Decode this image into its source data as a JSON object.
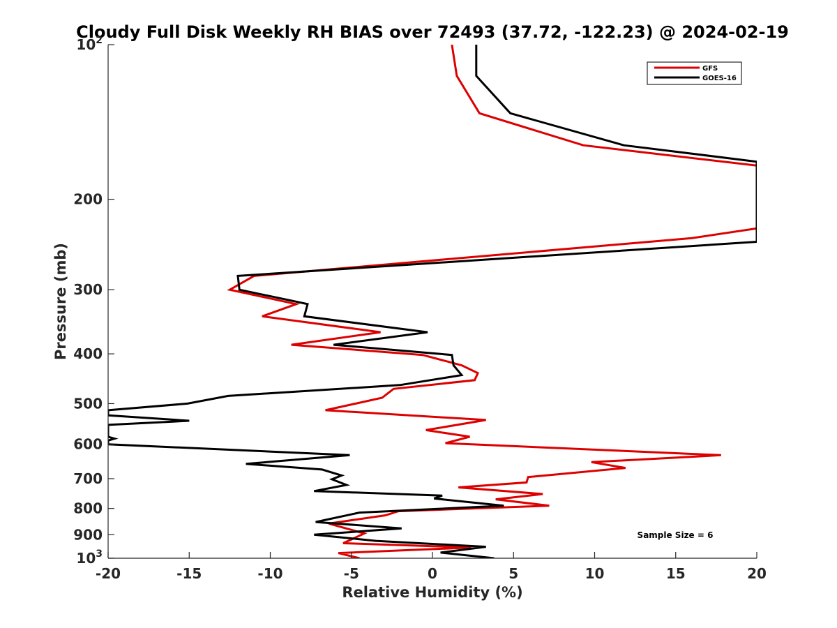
{
  "chart_data": {
    "type": "line",
    "title": "Cloudy Full Disk Weekly RH BIAS over 72493 (37.72, -122.23) @ 2024-02-19",
    "xlabel": "Relative Humidity (%)",
    "ylabel": "Pressure (mb)",
    "xlim": [
      -20,
      20
    ],
    "ylim": [
      100,
      1000
    ],
    "y_scale": "log",
    "y_reversed": true,
    "x_ticks": [
      "-20",
      "-15",
      "-10",
      "-5",
      "0",
      "5",
      "10",
      "15",
      "20"
    ],
    "y_ticks": [
      {
        "value": 100,
        "base": "10",
        "exp": "2"
      },
      {
        "value": 200,
        "label": "200"
      },
      {
        "value": 300,
        "label": "300"
      },
      {
        "value": 400,
        "label": "400"
      },
      {
        "value": 500,
        "label": "500"
      },
      {
        "value": 600,
        "label": "600"
      },
      {
        "value": 700,
        "label": "700"
      },
      {
        "value": 800,
        "label": "800"
      },
      {
        "value": 900,
        "label": "900"
      },
      {
        "value": 1000,
        "base": "10",
        "exp": "3"
      }
    ],
    "legend_position": "top-right",
    "annotation": "Sample Size = 6",
    "series": [
      {
        "name": "GFS",
        "color": "#dd0000",
        "points": [
          [
            1.2,
            100
          ],
          [
            1.5,
            115
          ],
          [
            2.9,
            136
          ],
          [
            9.3,
            157
          ],
          [
            20,
            172
          ],
          [
            20,
            228
          ],
          [
            16.0,
            238
          ],
          [
            -11.0,
            282
          ],
          [
            -12.5,
            300
          ],
          [
            -8.4,
            320
          ],
          [
            -10.5,
            338
          ],
          [
            -3.2,
            363
          ],
          [
            -8.7,
            384
          ],
          [
            -0.6,
            402
          ],
          [
            1.8,
            421
          ],
          [
            2.8,
            436
          ],
          [
            2.6,
            450
          ],
          [
            -2.4,
            468
          ],
          [
            -3.1,
            487
          ],
          [
            -6.6,
            515
          ],
          [
            3.3,
            538
          ],
          [
            -0.4,
            563
          ],
          [
            2.3,
            580
          ],
          [
            0.8,
            597
          ],
          [
            17.8,
            630
          ],
          [
            9.8,
            650
          ],
          [
            11.9,
            667
          ],
          [
            5.9,
            695
          ],
          [
            5.8,
            712
          ],
          [
            1.6,
            728
          ],
          [
            6.8,
            750
          ],
          [
            3.9,
            768
          ],
          [
            7.2,
            790
          ],
          [
            -2.1,
            810
          ],
          [
            -2.9,
            825
          ],
          [
            -6.4,
            856
          ],
          [
            -4.2,
            895
          ],
          [
            -5.5,
            935
          ],
          [
            2.4,
            953
          ],
          [
            -5.8,
            977
          ],
          [
            -4.5,
            1000
          ]
        ]
      },
      {
        "name": "GOES-16",
        "color": "#000000",
        "points": [
          [
            2.7,
            100
          ],
          [
            2.7,
            115
          ],
          [
            4.8,
            136
          ],
          [
            11.8,
            157
          ],
          [
            20,
            169
          ],
          [
            20,
            242
          ],
          [
            -12.0,
            282
          ],
          [
            -11.9,
            300
          ],
          [
            -7.7,
            320
          ],
          [
            -7.9,
            338
          ],
          [
            -0.3,
            363
          ],
          [
            -6.1,
            384
          ],
          [
            1.2,
            402
          ],
          [
            1.3,
            421
          ],
          [
            1.8,
            440
          ],
          [
            -2.0,
            460
          ],
          [
            -12.6,
            483
          ],
          [
            -15.1,
            500
          ],
          [
            -20,
            515
          ],
          [
            -20,
            527
          ],
          [
            -15.0,
            540
          ],
          [
            -20,
            550
          ],
          [
            -20,
            580
          ],
          [
            -19.6,
            585
          ],
          [
            -20,
            590
          ],
          [
            -20,
            600
          ],
          [
            -5.1,
            630
          ],
          [
            -11.5,
            655
          ],
          [
            -6.8,
            672
          ],
          [
            -5.6,
            690
          ],
          [
            -6.2,
            702
          ],
          [
            -5.3,
            720
          ],
          [
            -7.3,
            740
          ],
          [
            0.6,
            755
          ],
          [
            0.1,
            765
          ],
          [
            4.4,
            790
          ],
          [
            -4.5,
            815
          ],
          [
            -7.2,
            850
          ],
          [
            -1.9,
            875
          ],
          [
            -7.3,
            900
          ],
          [
            -3.5,
            925
          ],
          [
            3.3,
            950
          ],
          [
            0.5,
            975
          ],
          [
            3.8,
            1000
          ]
        ]
      }
    ]
  }
}
